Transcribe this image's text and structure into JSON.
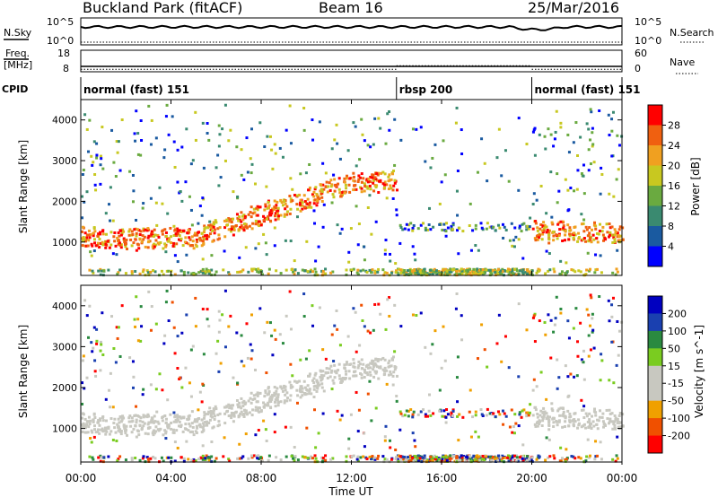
{
  "chart_data": [
    {
      "type": "line",
      "name": "header-and-noise",
      "header": {
        "station": "Buckland Park (fitACF)",
        "beam": "Beam 16",
        "date": "25/Mar/2016"
      },
      "left_labels": {
        "nsky": "N.Sky",
        "freq": "Freq.",
        "freq_unit": "[MHz]",
        "cpid": "CPID"
      },
      "right_labels": {
        "nsearch": "N.Search",
        "nave": "Nave"
      },
      "noise_ticks": {
        "top": "10^5",
        "bottom": "10^0"
      },
      "freq_ticks": {
        "top": "18",
        "bottom": "8"
      },
      "nave_ticks": {
        "top": "60",
        "bottom": "0"
      },
      "noise_level_hint": "high ~10^4, dip near 20:00 UT",
      "frequency_mhz": 10,
      "nave_segments": [
        {
          "start": "00:00",
          "end": "14:00",
          "value": 7
        },
        {
          "start": "14:00",
          "end": "20:00",
          "value": 17
        },
        {
          "start": "20:00",
          "end": "24:00",
          "value": 7
        }
      ],
      "cpid_segments": [
        {
          "start_h": 0,
          "end_h": 14,
          "label": "normal (fast) 151"
        },
        {
          "start_h": 14,
          "end_h": 20,
          "label": "rbsp 200"
        },
        {
          "start_h": 20,
          "end_h": 24,
          "label": "normal (fast) 151"
        }
      ]
    },
    {
      "type": "heatmap",
      "name": "power",
      "ylabel": "Slant Range [km]",
      "colorbar_label": "Power [dB]",
      "colorbar_ticks": [
        4,
        8,
        12,
        16,
        20,
        24,
        28
      ],
      "ylim": [
        180,
        4500
      ],
      "yticks": [
        1000,
        2000,
        3000,
        4000
      ]
    },
    {
      "type": "heatmap",
      "name": "velocity",
      "ylabel": "Slant Range [km]",
      "colorbar_label": "Velocity [m s^-1]",
      "colorbar_ticks": [
        200,
        100,
        50,
        15,
        -15,
        -50,
        -100,
        -200
      ],
      "ylim": [
        180,
        4500
      ],
      "yticks": [
        1000,
        2000,
        3000,
        4000
      ]
    }
  ],
  "xaxis": {
    "label": "Time UT",
    "ticks": [
      "00:00",
      "04:00",
      "08:00",
      "12:00",
      "16:00",
      "20:00",
      "00:00"
    ],
    "range_hours": [
      0,
      24
    ]
  },
  "colors": {
    "power_scale": [
      "#0000ff",
      "#1a5aa0",
      "#3a8a70",
      "#6aaa40",
      "#c8c820",
      "#f0a020",
      "#f06010",
      "#ff0000"
    ],
    "velocity_scale": [
      "#ff0000",
      "#f05000",
      "#f0a000",
      "#c8c8c0",
      "#c8c8c0",
      "#7acc20",
      "#2a8a40",
      "#1a40b0",
      "#0000c0"
    ]
  }
}
